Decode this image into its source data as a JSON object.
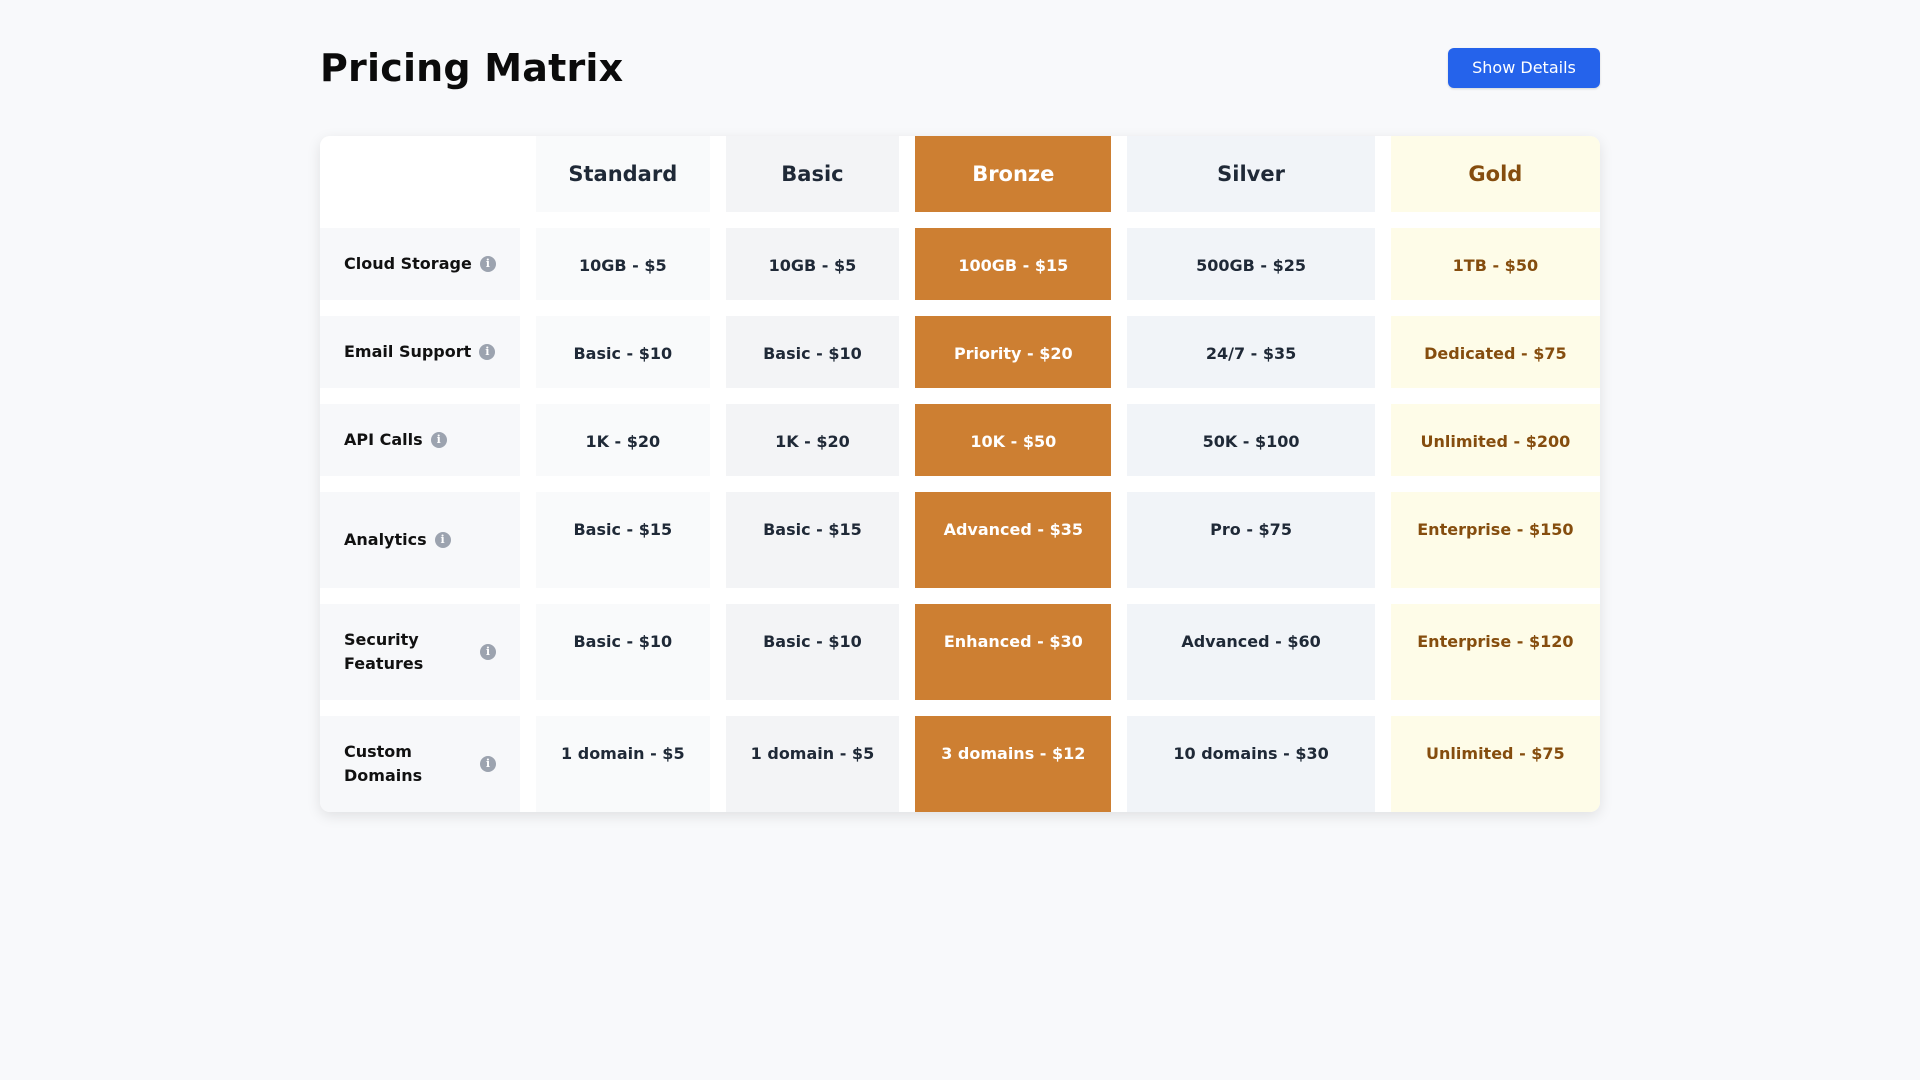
{
  "page": {
    "title": "Pricing Matrix",
    "show_details_label": "Show Details"
  },
  "plans": [
    "Standard",
    "Basic",
    "Bronze",
    "Silver",
    "Gold"
  ],
  "colors": {
    "accent": "#2563eb",
    "bronze": "#cd7f32",
    "gold_bg": "#fefce8",
    "gold_text": "#854d0e"
  },
  "icons": {
    "info": "info-icon"
  },
  "info_glyph": "i",
  "features": [
    {
      "name": "Cloud Storage",
      "values": [
        "10GB - $5",
        "10GB - $5",
        "100GB - $15",
        "500GB - $25",
        "1TB - $50"
      ]
    },
    {
      "name": "Email Support",
      "values": [
        "Basic - $10",
        "Basic - $10",
        "Priority - $20",
        "24/7 - $35",
        "Dedicated - $75"
      ]
    },
    {
      "name": "API Calls",
      "values": [
        "1K - $20",
        "1K - $20",
        "10K - $50",
        "50K - $100",
        "Unlimited - $200"
      ]
    },
    {
      "name": "Analytics",
      "values": [
        "Basic - $15",
        "Basic - $15",
        "Advanced - $35",
        "Pro - $75",
        "Enterprise - $150"
      ]
    },
    {
      "name": "Security Features",
      "values": [
        "Basic - $10",
        "Basic - $10",
        "Enhanced - $30",
        "Advanced - $60",
        "Enterprise - $120"
      ]
    },
    {
      "name": "Custom Domains",
      "values": [
        "1 domain - $5",
        "1 domain - $5",
        "3 domains - $12",
        "10 domains - $30",
        "Unlimited - $75"
      ]
    }
  ]
}
